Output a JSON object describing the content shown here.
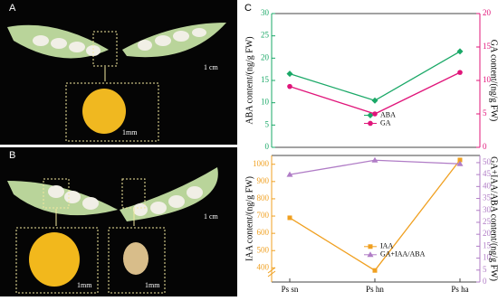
{
  "panels": [
    {
      "label": "A",
      "scale_bars": [
        "1 cm",
        "1mm"
      ]
    },
    {
      "label": "B",
      "scale_bars": [
        "1 cm",
        "1mm",
        "1mm"
      ]
    },
    {
      "label": "C"
    }
  ],
  "chart_data": [
    {
      "type": "line",
      "ylabel": "ABA  content/(ng/g FW)",
      "y2label": "GA  content/(ng/g FW)",
      "ylim": [
        0,
        30
      ],
      "yticks": [
        0,
        5,
        10,
        15,
        20,
        25,
        30
      ],
      "y2lim": [
        0,
        20
      ],
      "y2ticks": [
        0,
        5,
        10,
        15,
        20
      ],
      "ycolor": "#1aa867",
      "y2color": "#e0157a",
      "legend": "center",
      "series": [
        {
          "name": "ABA",
          "color": "#1aa867",
          "marker": "diamond",
          "values": [
            16.5,
            10.5,
            21.5
          ]
        },
        {
          "name": "GA",
          "color": "#e0157a",
          "marker": "circle",
          "axis": "y2",
          "values": [
            9.1,
            5.0,
            11.2
          ]
        }
      ]
    },
    {
      "type": "line",
      "ylabel": "IAA  content/(ng/g FW)",
      "y2label": "GA+IAA/ABA content/(ng/g FW)",
      "categories": [
        "Ps sn",
        "Ps hn",
        "Ps ha"
      ],
      "ylim": [
        318,
        1051
      ],
      "yticks": [
        400,
        500,
        600,
        700,
        800,
        900,
        1000
      ],
      "y2lim": [
        0,
        53
      ],
      "y2ticks": [
        0,
        5,
        10,
        15,
        20,
        25,
        30,
        35,
        40,
        45,
        50
      ],
      "ycolor": "#f0a020",
      "y2color": "#b07cc6",
      "legend": "lower center",
      "series": [
        {
          "name": "IAA",
          "color": "#f0a020",
          "marker": "square",
          "values": [
            690,
            385,
            1025
          ]
        },
        {
          "name": "GA+IAA/ABA",
          "color": "#b07cc6",
          "marker": "triangle",
          "axis": "y2",
          "values": [
            45,
            51,
            49.5
          ]
        }
      ]
    }
  ]
}
